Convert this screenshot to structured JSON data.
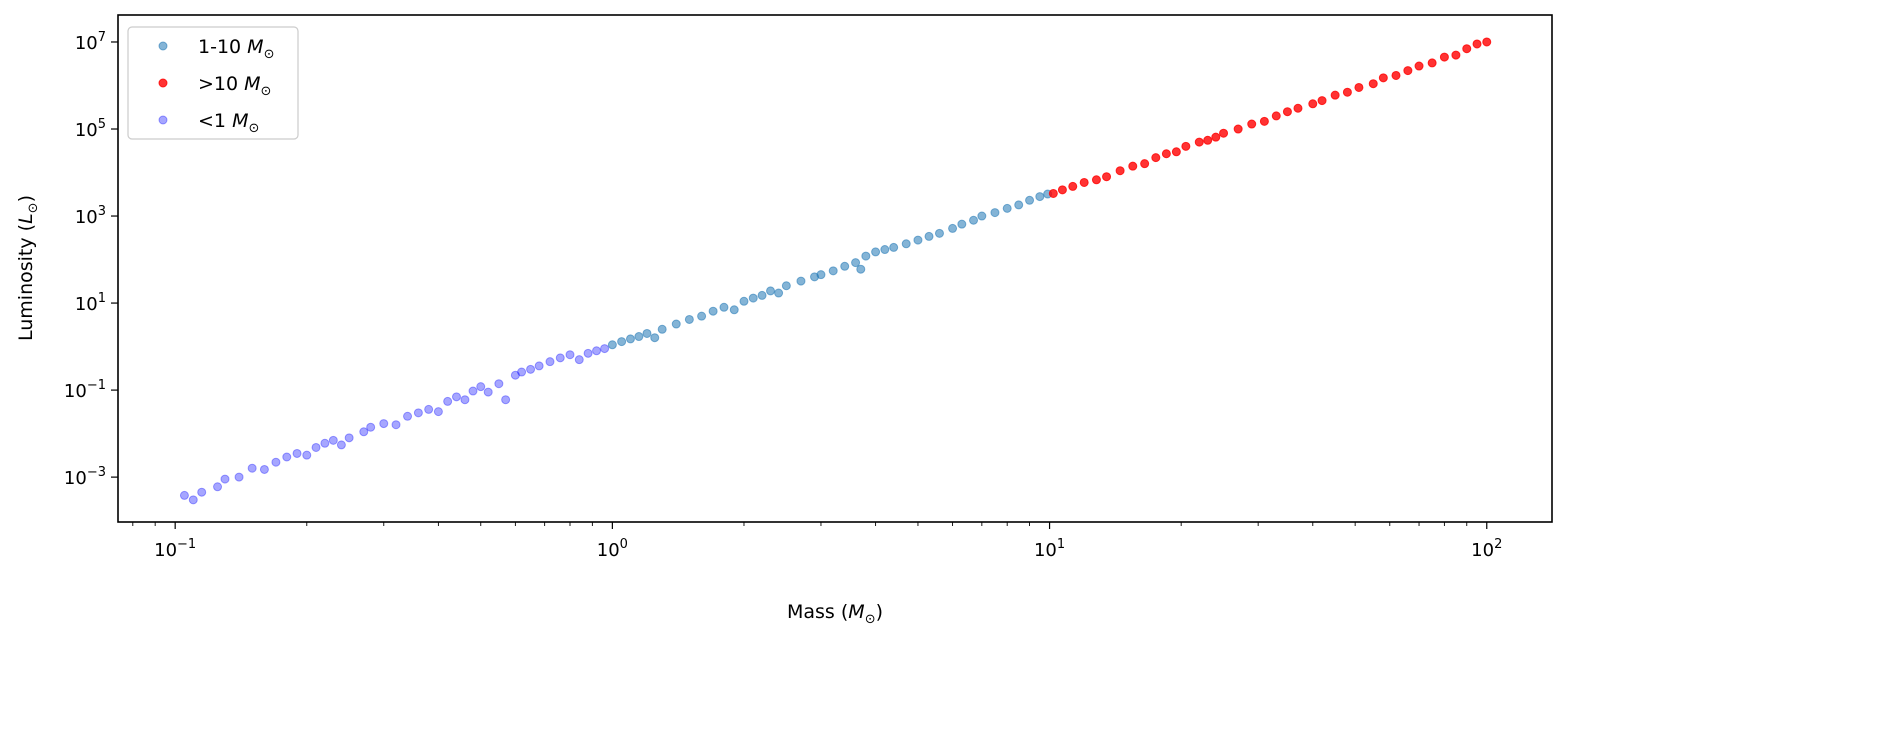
{
  "chart_data": {
    "type": "scatter",
    "title": "",
    "xlabel": {
      "text": "Mass (",
      "symbol": "M",
      "sub": "⊙",
      "close": ")"
    },
    "ylabel": {
      "text": "Luminosity (",
      "symbol": "L",
      "sub": "⊙",
      "close": ")"
    },
    "xscale": "log",
    "yscale": "log",
    "xlim": [
      0.074,
      141
    ],
    "ylim": [
      9.3e-05,
      41700000
    ],
    "grid": false,
    "legend_placement": "top-left",
    "xticks": [
      {
        "base": "10",
        "exp": "−1",
        "value": 0.1
      },
      {
        "base": "10",
        "exp": "0",
        "value": 1
      },
      {
        "base": "10",
        "exp": "1",
        "value": 10
      },
      {
        "base": "10",
        "exp": "2",
        "value": 100
      }
    ],
    "yticks": [
      {
        "base": "10",
        "exp": "−3",
        "value": 0.001
      },
      {
        "base": "10",
        "exp": "−1",
        "value": 0.1
      },
      {
        "base": "10",
        "exp": "1",
        "value": 10
      },
      {
        "base": "10",
        "exp": "3",
        "value": 1000
      },
      {
        "base": "10",
        "exp": "5",
        "value": 100000
      },
      {
        "base": "10",
        "exp": "7",
        "value": 10000000
      }
    ],
    "series": [
      {
        "name": "1-10",
        "unit": "M",
        "sub": "⊙",
        "color": "#1f77b4",
        "alpha": 0.55,
        "points": [
          [
            1.0,
            1.1
          ],
          [
            1.05,
            1.3
          ],
          [
            1.1,
            1.5
          ],
          [
            1.15,
            1.7
          ],
          [
            1.2,
            2
          ],
          [
            1.25,
            1.6
          ],
          [
            1.3,
            2.5
          ],
          [
            1.4,
            3.3
          ],
          [
            1.5,
            4.2
          ],
          [
            1.6,
            5
          ],
          [
            1.7,
            6.5
          ],
          [
            1.8,
            8
          ],
          [
            1.9,
            7
          ],
          [
            2.0,
            11
          ],
          [
            2.1,
            13
          ],
          [
            2.2,
            15
          ],
          [
            2.3,
            19
          ],
          [
            2.4,
            17
          ],
          [
            2.5,
            25
          ],
          [
            2.7,
            32
          ],
          [
            2.9,
            40
          ],
          [
            3.0,
            45
          ],
          [
            3.2,
            55
          ],
          [
            3.4,
            70
          ],
          [
            3.6,
            85
          ],
          [
            3.7,
            60
          ],
          [
            3.8,
            120
          ],
          [
            4.0,
            150
          ],
          [
            4.2,
            170
          ],
          [
            4.4,
            190
          ],
          [
            4.7,
            230
          ],
          [
            5.0,
            280
          ],
          [
            5.3,
            340
          ],
          [
            5.6,
            400
          ],
          [
            6.0,
            520
          ],
          [
            6.3,
            650
          ],
          [
            6.7,
            800
          ],
          [
            7.0,
            1000
          ],
          [
            7.5,
            1200
          ],
          [
            8.0,
            1500
          ],
          [
            8.5,
            1800
          ],
          [
            9.0,
            2300
          ],
          [
            9.5,
            2800
          ],
          [
            9.9,
            3200
          ]
        ]
      },
      {
        "name": ">10",
        "unit": "M",
        "sub": "⊙",
        "color": "#ff0000",
        "alpha": 0.8,
        "points": [
          [
            10.2,
            3300
          ],
          [
            10.7,
            4000
          ],
          [
            11.3,
            4800
          ],
          [
            12,
            5900
          ],
          [
            12.8,
            6800
          ],
          [
            13.5,
            8000
          ],
          [
            14.5,
            11000
          ],
          [
            15.5,
            14000
          ],
          [
            16.5,
            16000
          ],
          [
            17.5,
            22000
          ],
          [
            18.5,
            27000
          ],
          [
            19.5,
            30000
          ],
          [
            20.5,
            40000
          ],
          [
            22,
            50000
          ],
          [
            23,
            55000
          ],
          [
            24,
            65000
          ],
          [
            25,
            80000
          ],
          [
            27,
            100000
          ],
          [
            29,
            130000
          ],
          [
            31,
            150000
          ],
          [
            33,
            200000
          ],
          [
            35,
            250000
          ],
          [
            37,
            300000
          ],
          [
            40,
            380000
          ],
          [
            42,
            450000
          ],
          [
            45,
            600000
          ],
          [
            48,
            700000
          ],
          [
            51,
            900000
          ],
          [
            55,
            1100000
          ],
          [
            58,
            1500000
          ],
          [
            62,
            1700000
          ],
          [
            66,
            2200000
          ],
          [
            70,
            2800000
          ],
          [
            75,
            3300000
          ],
          [
            80,
            4500000
          ],
          [
            85,
            5000000
          ],
          [
            90,
            7000000
          ],
          [
            95,
            9000000
          ],
          [
            100,
            10000000
          ]
        ]
      },
      {
        "name": "<1",
        "unit": "M",
        "sub": "⊙",
        "color": "#0000ff",
        "alpha": 0.35,
        "points": [
          [
            0.105,
            0.00038
          ],
          [
            0.11,
            0.0003
          ],
          [
            0.115,
            0.00045
          ],
          [
            0.125,
            0.0006
          ],
          [
            0.13,
            0.0009
          ],
          [
            0.14,
            0.001
          ],
          [
            0.15,
            0.0016
          ],
          [
            0.16,
            0.0015
          ],
          [
            0.17,
            0.0022
          ],
          [
            0.18,
            0.0029
          ],
          [
            0.19,
            0.0035
          ],
          [
            0.2,
            0.0032
          ],
          [
            0.21,
            0.0048
          ],
          [
            0.22,
            0.006
          ],
          [
            0.23,
            0.007
          ],
          [
            0.24,
            0.0055
          ],
          [
            0.25,
            0.008
          ],
          [
            0.27,
            0.011
          ],
          [
            0.28,
            0.014
          ],
          [
            0.3,
            0.017
          ],
          [
            0.32,
            0.016
          ],
          [
            0.34,
            0.025
          ],
          [
            0.36,
            0.03
          ],
          [
            0.38,
            0.036
          ],
          [
            0.4,
            0.032
          ],
          [
            0.42,
            0.055
          ],
          [
            0.44,
            0.07
          ],
          [
            0.46,
            0.06
          ],
          [
            0.48,
            0.095
          ],
          [
            0.5,
            0.12
          ],
          [
            0.52,
            0.09
          ],
          [
            0.55,
            0.14
          ],
          [
            0.57,
            0.06
          ],
          [
            0.6,
            0.22
          ],
          [
            0.62,
            0.26
          ],
          [
            0.65,
            0.3
          ],
          [
            0.68,
            0.36
          ],
          [
            0.72,
            0.45
          ],
          [
            0.76,
            0.55
          ],
          [
            0.8,
            0.65
          ],
          [
            0.84,
            0.5
          ],
          [
            0.88,
            0.7
          ],
          [
            0.92,
            0.8
          ],
          [
            0.96,
            0.9
          ]
        ]
      }
    ]
  }
}
